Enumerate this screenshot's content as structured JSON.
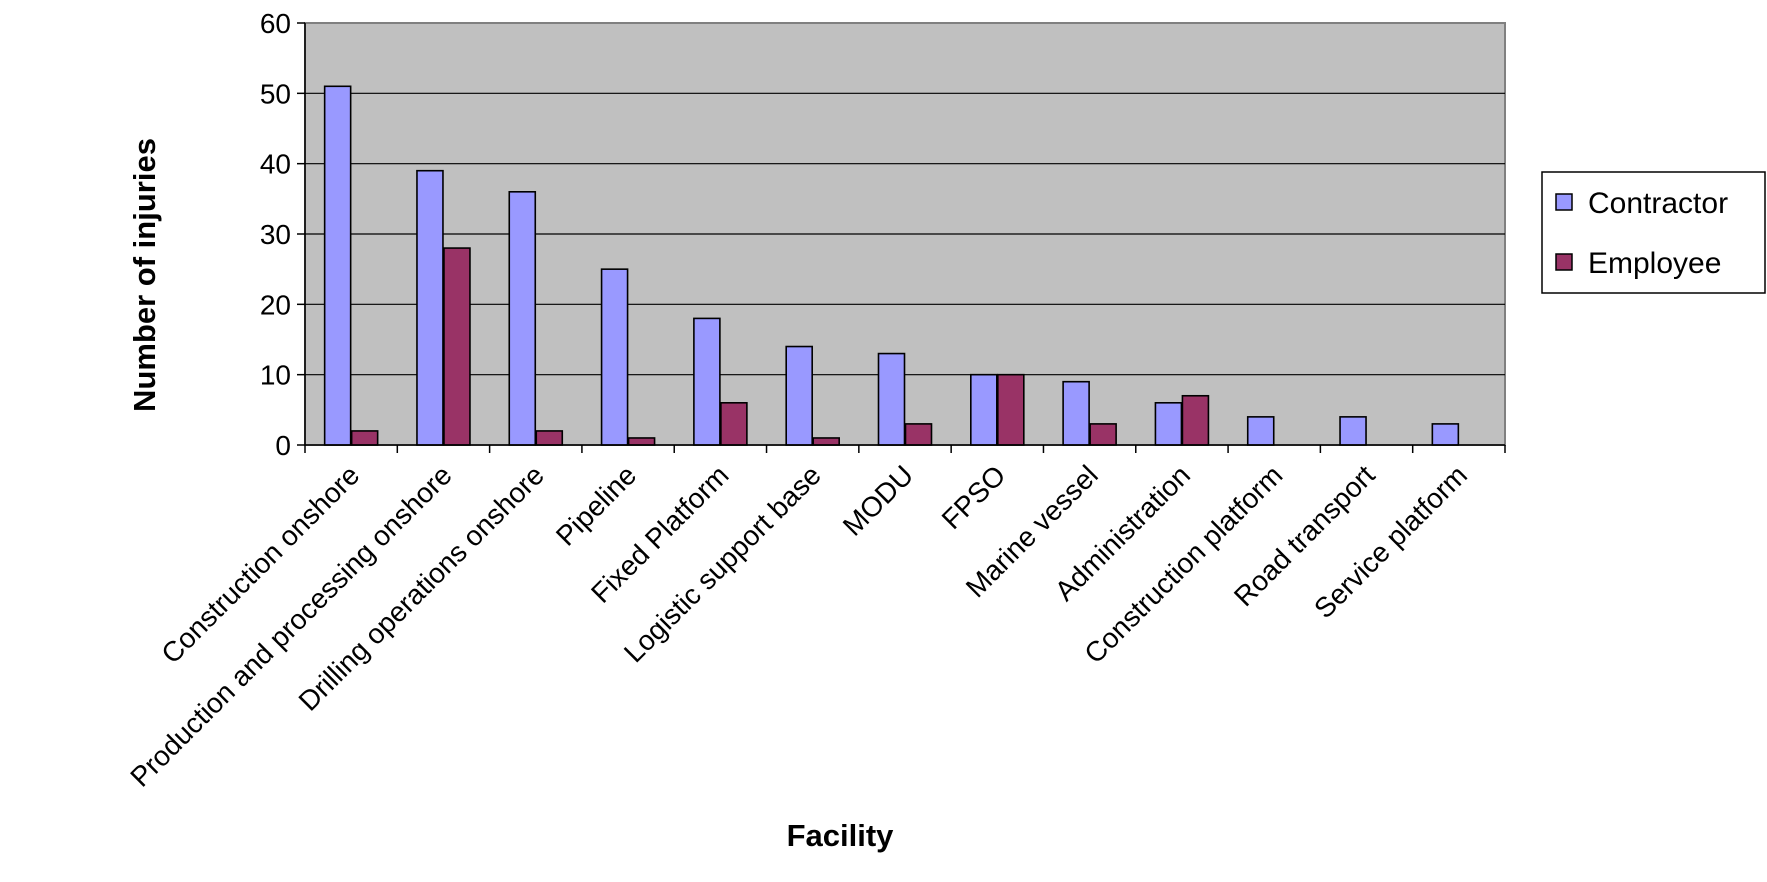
{
  "chart_data": {
    "type": "bar",
    "title": "",
    "xlabel": "Facility",
    "ylabel": "Number of injuries",
    "ylim": [
      0,
      60
    ],
    "yticks": [
      0,
      10,
      20,
      30,
      40,
      50,
      60
    ],
    "grid": true,
    "legend_position": "right",
    "plot_background": "#c0c0c0",
    "categories": [
      "Construction onshore",
      "Production and processing onshore",
      "Drilling operations onshore",
      "Pipeline",
      "Fixed Platform",
      "Logistic support base",
      "MODU",
      "FPSO",
      "Marine vessel",
      "Administration",
      "Construction platform",
      "Road transport",
      "Service platform"
    ],
    "series": [
      {
        "name": "Contractor",
        "color": "#9999ff",
        "values": [
          51,
          39,
          36,
          25,
          18,
          14,
          13,
          10,
          9,
          6,
          4,
          4,
          3
        ]
      },
      {
        "name": "Employee",
        "color": "#993366",
        "values": [
          2,
          28,
          2,
          1,
          6,
          1,
          3,
          10,
          3,
          7,
          0,
          0,
          0
        ]
      }
    ]
  }
}
